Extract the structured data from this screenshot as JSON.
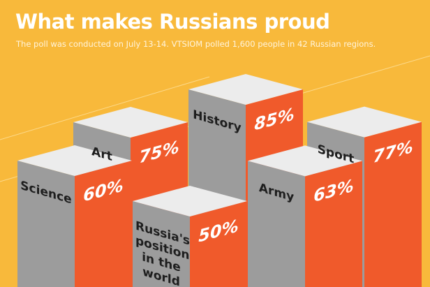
{
  "chart_data": {
    "type": "bar",
    "title": "What makes Russians proud",
    "subtitle": "The poll was conducted on July 13-14. VTSIOM polled 1,600 people in 42 Russian regions.",
    "categories": [
      "Science",
      "Art",
      "Russia's position in the world",
      "History",
      "Army",
      "Sport"
    ],
    "values": [
      60,
      75,
      50,
      85,
      63,
      77
    ],
    "value_labels": [
      "60%",
      "75%",
      "50%",
      "85%",
      "63%",
      "77%"
    ],
    "color": "#f05a2b"
  }
}
